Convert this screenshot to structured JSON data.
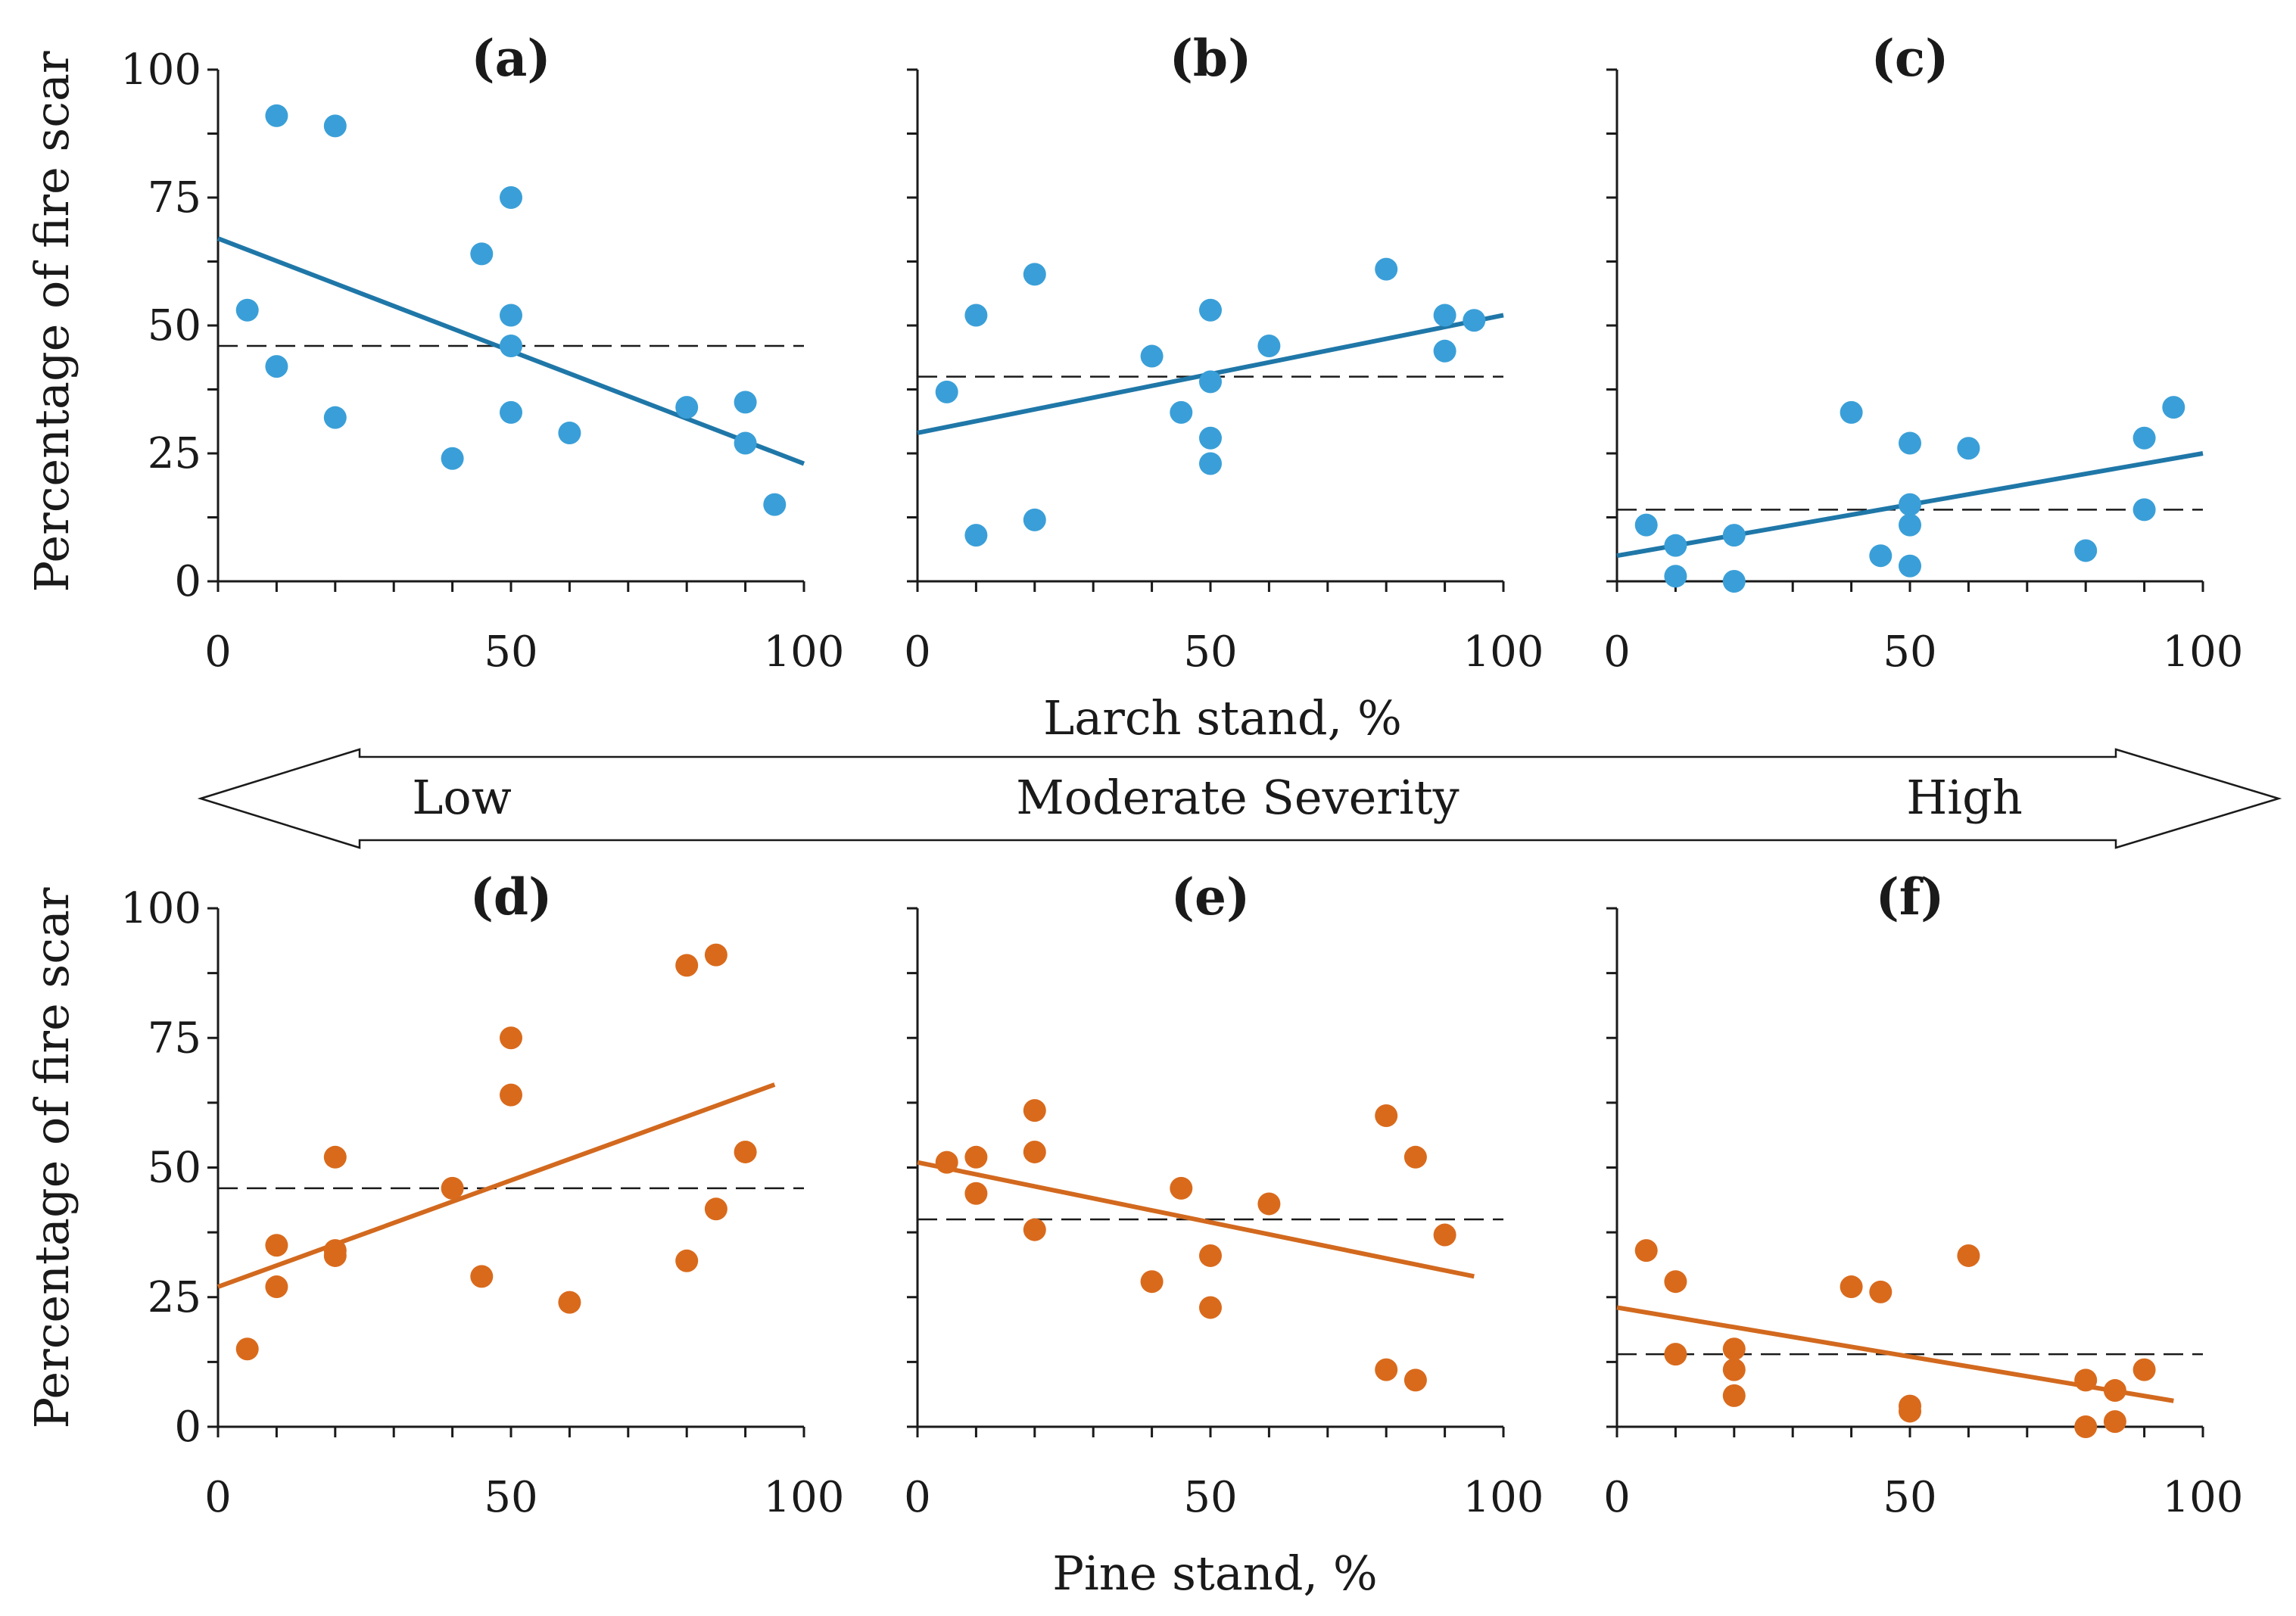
{
  "figure": {
    "y_axis_title": "Percentage of fire scar",
    "larch_axis_title": "Larch stand, %",
    "pine_axis_title": "Pine stand, %",
    "severity": {
      "low": "Low",
      "moderate": "Moderate Severity",
      "high": "High"
    }
  },
  "colors": {
    "larch": "#3a9fd8",
    "larch_line": "#1f77a8",
    "pine": "#d96a1c",
    "pine_line": "#d2691e"
  },
  "chart_data": [
    {
      "id": "a",
      "label": "(a)",
      "type": "scatter",
      "series_color": "larch",
      "xlabel": "Larch stand, %",
      "ylabel": "Percentage of fire scar",
      "xlim": [
        0,
        100
      ],
      "ylim": [
        0,
        100
      ],
      "xticks": [
        "0",
        "50",
        "100"
      ],
      "yticks": [
        "0",
        "25",
        "50",
        "75",
        "100"
      ],
      "points": [
        [
          5,
          53
        ],
        [
          10,
          91
        ],
        [
          10,
          42
        ],
        [
          20,
          89
        ],
        [
          20,
          32
        ],
        [
          40,
          24
        ],
        [
          45,
          64
        ],
        [
          50,
          75
        ],
        [
          50,
          52
        ],
        [
          50,
          46
        ],
        [
          50,
          33
        ],
        [
          60,
          29
        ],
        [
          80,
          34
        ],
        [
          90,
          35
        ],
        [
          90,
          27
        ],
        [
          95,
          15
        ]
      ],
      "trend": [
        [
          0,
          67
        ],
        [
          100,
          23
        ]
      ],
      "mean": 46
    },
    {
      "id": "b",
      "label": "(b)",
      "type": "scatter",
      "series_color": "larch",
      "xlabel": "Larch stand, %",
      "ylabel": "",
      "xlim": [
        0,
        100
      ],
      "ylim": [
        0,
        100
      ],
      "xticks": [
        "0",
        "50",
        "100"
      ],
      "yticks": [],
      "points": [
        [
          5,
          37
        ],
        [
          10,
          52
        ],
        [
          10,
          9
        ],
        [
          20,
          60
        ],
        [
          20,
          12
        ],
        [
          40,
          44
        ],
        [
          45,
          33
        ],
        [
          50,
          53
        ],
        [
          50,
          39
        ],
        [
          50,
          28
        ],
        [
          50,
          23
        ],
        [
          60,
          46
        ],
        [
          80,
          61
        ],
        [
          90,
          52
        ],
        [
          90,
          45
        ],
        [
          95,
          51
        ]
      ],
      "trend": [
        [
          0,
          29
        ],
        [
          100,
          52
        ]
      ],
      "mean": 40
    },
    {
      "id": "c",
      "label": "(c)",
      "type": "scatter",
      "series_color": "larch",
      "xlabel": "Larch stand, %",
      "ylabel": "",
      "xlim": [
        0,
        100
      ],
      "ylim": [
        0,
        100
      ],
      "xticks": [
        "0",
        "50",
        "100"
      ],
      "yticks": [],
      "points": [
        [
          5,
          11
        ],
        [
          10,
          7
        ],
        [
          10,
          1
        ],
        [
          20,
          9
        ],
        [
          20,
          0
        ],
        [
          40,
          33
        ],
        [
          45,
          5
        ],
        [
          50,
          27
        ],
        [
          50,
          15
        ],
        [
          50,
          11
        ],
        [
          50,
          3
        ],
        [
          60,
          26
        ],
        [
          80,
          6
        ],
        [
          90,
          28
        ],
        [
          90,
          14
        ],
        [
          95,
          34
        ]
      ],
      "trend": [
        [
          0,
          5
        ],
        [
          100,
          25
        ]
      ],
      "mean": 14
    },
    {
      "id": "d",
      "label": "(d)",
      "type": "scatter",
      "series_color": "pine",
      "xlabel": "Pine stand, %",
      "ylabel": "Percentage of fire scar",
      "xlim": [
        0,
        100
      ],
      "ylim": [
        0,
        100
      ],
      "xticks": [
        "0",
        "50",
        "100"
      ],
      "yticks": [
        "0",
        "25",
        "50",
        "75",
        "100"
      ],
      "points": [
        [
          5,
          15
        ],
        [
          10,
          35
        ],
        [
          10,
          27
        ],
        [
          20,
          52
        ],
        [
          20,
          34
        ],
        [
          20,
          33
        ],
        [
          40,
          46
        ],
        [
          45,
          29
        ],
        [
          50,
          75
        ],
        [
          50,
          64
        ],
        [
          60,
          24
        ],
        [
          80,
          89
        ],
        [
          80,
          32
        ],
        [
          85,
          91
        ],
        [
          85,
          42
        ],
        [
          90,
          53
        ]
      ],
      "trend": [
        [
          0,
          27
        ],
        [
          95,
          66
        ]
      ],
      "mean": 46
    },
    {
      "id": "e",
      "label": "(e)",
      "type": "scatter",
      "series_color": "pine",
      "xlabel": "Pine stand, %",
      "ylabel": "",
      "xlim": [
        0,
        100
      ],
      "ylim": [
        0,
        100
      ],
      "xticks": [
        "0",
        "50",
        "100"
      ],
      "yticks": [],
      "points": [
        [
          5,
          51
        ],
        [
          10,
          52
        ],
        [
          10,
          45
        ],
        [
          20,
          61
        ],
        [
          20,
          53
        ],
        [
          20,
          38
        ],
        [
          40,
          28
        ],
        [
          45,
          46
        ],
        [
          50,
          33
        ],
        [
          50,
          23
        ],
        [
          60,
          43
        ],
        [
          80,
          60
        ],
        [
          80,
          11
        ],
        [
          85,
          52
        ],
        [
          85,
          9
        ],
        [
          90,
          37
        ]
      ],
      "trend": [
        [
          0,
          51
        ],
        [
          95,
          29
        ]
      ],
      "mean": 40
    },
    {
      "id": "f",
      "label": "(f)",
      "type": "scatter",
      "series_color": "pine",
      "xlabel": "Pine stand, %",
      "ylabel": "",
      "xlim": [
        0,
        100
      ],
      "ylim": [
        0,
        100
      ],
      "xticks": [
        "0",
        "50",
        "100"
      ],
      "yticks": [],
      "points": [
        [
          5,
          34
        ],
        [
          10,
          28
        ],
        [
          10,
          14
        ],
        [
          20,
          15
        ],
        [
          20,
          11
        ],
        [
          20,
          6
        ],
        [
          40,
          27
        ],
        [
          45,
          26
        ],
        [
          50,
          4
        ],
        [
          50,
          3
        ],
        [
          60,
          33
        ],
        [
          80,
          9
        ],
        [
          80,
          0
        ],
        [
          85,
          7
        ],
        [
          85,
          1
        ],
        [
          90,
          11
        ]
      ],
      "trend": [
        [
          0,
          23
        ],
        [
          95,
          5
        ]
      ],
      "mean": 14
    }
  ]
}
